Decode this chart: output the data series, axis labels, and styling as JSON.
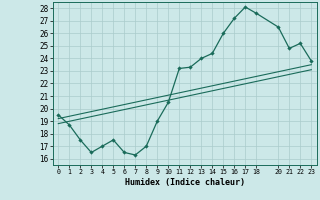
{
  "title": "",
  "xlabel": "Humidex (Indice chaleur)",
  "bg_color": "#cce8e8",
  "grid_color": "#aacccc",
  "line_color": "#1a6b5a",
  "xlim": [
    -0.5,
    23.5
  ],
  "ylim": [
    15.5,
    28.5
  ],
  "xticks": [
    0,
    1,
    2,
    3,
    4,
    5,
    6,
    7,
    8,
    9,
    10,
    11,
    12,
    13,
    14,
    15,
    16,
    17,
    18,
    20,
    21,
    22,
    23
  ],
  "yticks": [
    16,
    17,
    18,
    19,
    20,
    21,
    22,
    23,
    24,
    25,
    26,
    27,
    28
  ],
  "line1_x": [
    0,
    1,
    2,
    3,
    4,
    5,
    6,
    7,
    8,
    9,
    10,
    11,
    12,
    13,
    14,
    15,
    16,
    17,
    18,
    20,
    21,
    22,
    23
  ],
  "line1_y": [
    19.5,
    18.7,
    17.5,
    16.5,
    17.0,
    17.5,
    16.5,
    16.3,
    17.0,
    19.0,
    20.5,
    23.2,
    23.3,
    24.0,
    24.4,
    26.0,
    27.2,
    28.1,
    27.6,
    26.5,
    24.8,
    25.2,
    23.8
  ],
  "line2_x": [
    0,
    23
  ],
  "line2_y": [
    19.2,
    23.5
  ],
  "line3_x": [
    0,
    23
  ],
  "line3_y": [
    18.8,
    23.1
  ]
}
